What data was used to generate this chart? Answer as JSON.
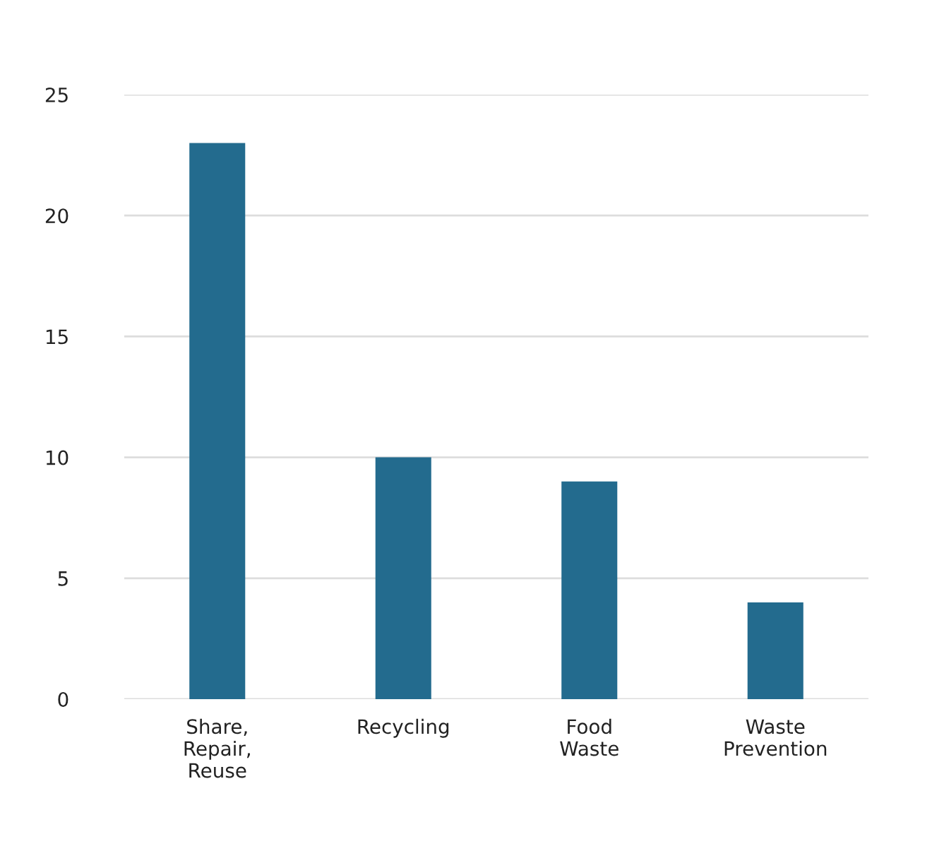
{
  "chart_data": {
    "type": "bar",
    "categories": [
      "Share,\nRepair,\nReuse",
      "Recycling",
      "Food\nWaste",
      "Waste\nPrevention"
    ],
    "values": [
      23,
      10,
      9,
      4
    ],
    "color": "#236b8e",
    "ylim": [
      0,
      25
    ],
    "yticks": [
      0,
      5,
      10,
      15,
      20,
      25
    ],
    "grid": "y"
  }
}
